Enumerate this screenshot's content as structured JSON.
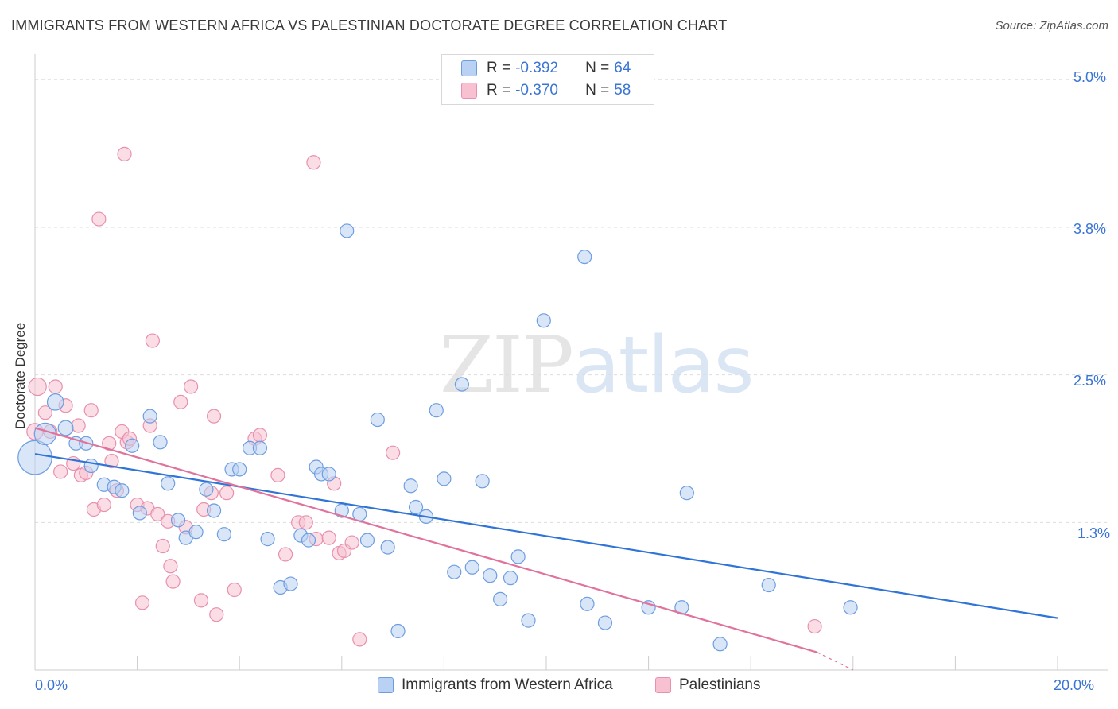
{
  "header": {
    "title": "IMMIGRANTS FROM WESTERN AFRICA VS PALESTINIAN DOCTORATE DEGREE CORRELATION CHART",
    "source": "Source: ZipAtlas.com"
  },
  "watermark": {
    "zip": "ZIP",
    "atlas": "atlas"
  },
  "legend": {
    "rows": [
      {
        "r_label": "R = ",
        "r_value": "-0.392",
        "n_label": "N = ",
        "n_value": "64"
      },
      {
        "r_label": "R = ",
        "r_value": "-0.370",
        "n_label": "N = ",
        "n_value": "58"
      }
    ]
  },
  "bottom_legend": {
    "items": [
      {
        "label": "Immigrants from Western Africa"
      },
      {
        "label": "Palestinians"
      }
    ]
  },
  "axes": {
    "x_tick_labels": [
      "0.0%",
      "20.0%"
    ],
    "y_tick_labels": [
      "5.0%",
      "3.8%",
      "2.5%",
      "1.3%"
    ]
  },
  "colors": {
    "blue_fill": "#b9d1f2",
    "blue_stroke": "#6d9de0",
    "blue_line": "#2f74d6",
    "pink_fill": "#f7c1d1",
    "pink_stroke": "#e890ad",
    "pink_line": "#e0729c",
    "grid": "#dddddd",
    "tick_text": "#3a74d4"
  },
  "chart_data": {
    "type": "scatter",
    "title": "IMMIGRANTS FROM WESTERN AFRICA VS PALESTINIAN DOCTORATE DEGREE CORRELATION CHART",
    "xlabel": "",
    "ylabel": "Doctorate Degree",
    "xlim": [
      0,
      20
    ],
    "ylim": [
      0,
      5.15
    ],
    "y_gridlines": [
      1.25,
      2.5,
      3.75,
      5.0
    ],
    "series": [
      {
        "name": "Immigrants from Western Africa",
        "r": -0.392,
        "n": 64,
        "trend": {
          "x": [
            0,
            20
          ],
          "y": [
            1.83,
            0.44
          ]
        },
        "points": [
          {
            "x": 0.0,
            "y": 1.8,
            "s": 2.5
          },
          {
            "x": 0.2,
            "y": 2.0,
            "s": 1.6
          },
          {
            "x": 0.4,
            "y": 2.27,
            "s": 1.2
          },
          {
            "x": 0.6,
            "y": 2.05,
            "s": 1.1
          },
          {
            "x": 0.8,
            "y": 1.92,
            "s": 1.0
          },
          {
            "x": 1.0,
            "y": 1.92,
            "s": 1.0
          },
          {
            "x": 1.1,
            "y": 1.73,
            "s": 1.0
          },
          {
            "x": 1.35,
            "y": 1.57,
            "s": 1.0
          },
          {
            "x": 1.55,
            "y": 1.55,
            "s": 1.0
          },
          {
            "x": 1.7,
            "y": 1.52,
            "s": 1.0
          },
          {
            "x": 1.9,
            "y": 1.9,
            "s": 1.0
          },
          {
            "x": 2.05,
            "y": 1.33,
            "s": 1.0
          },
          {
            "x": 2.25,
            "y": 2.15,
            "s": 1.0
          },
          {
            "x": 2.45,
            "y": 1.93,
            "s": 1.0
          },
          {
            "x": 2.6,
            "y": 1.58,
            "s": 1.0
          },
          {
            "x": 2.8,
            "y": 1.27,
            "s": 1.0
          },
          {
            "x": 2.95,
            "y": 1.12,
            "s": 1.0
          },
          {
            "x": 3.15,
            "y": 1.17,
            "s": 1.0
          },
          {
            "x": 3.35,
            "y": 1.53,
            "s": 1.0
          },
          {
            "x": 3.5,
            "y": 1.35,
            "s": 1.0
          },
          {
            "x": 3.7,
            "y": 1.15,
            "s": 1.0
          },
          {
            "x": 3.85,
            "y": 1.7,
            "s": 1.0
          },
          {
            "x": 4.0,
            "y": 1.7,
            "s": 1.0
          },
          {
            "x": 4.2,
            "y": 1.88,
            "s": 1.0
          },
          {
            "x": 4.4,
            "y": 1.88,
            "s": 1.0
          },
          {
            "x": 4.55,
            "y": 1.11,
            "s": 1.0
          },
          {
            "x": 4.8,
            "y": 0.7,
            "s": 1.0
          },
          {
            "x": 5.0,
            "y": 0.73,
            "s": 1.0
          },
          {
            "x": 5.2,
            "y": 1.14,
            "s": 1.0
          },
          {
            "x": 5.35,
            "y": 1.1,
            "s": 1.0
          },
          {
            "x": 5.5,
            "y": 1.72,
            "s": 1.0
          },
          {
            "x": 5.6,
            "y": 1.66,
            "s": 1.0
          },
          {
            "x": 5.75,
            "y": 1.66,
            "s": 1.0
          },
          {
            "x": 6.0,
            "y": 1.35,
            "s": 1.0
          },
          {
            "x": 6.1,
            "y": 3.72,
            "s": 1.0
          },
          {
            "x": 6.35,
            "y": 1.32,
            "s": 1.0
          },
          {
            "x": 6.5,
            "y": 1.1,
            "s": 1.0
          },
          {
            "x": 6.7,
            "y": 2.12,
            "s": 1.0
          },
          {
            "x": 6.9,
            "y": 1.04,
            "s": 1.0
          },
          {
            "x": 7.1,
            "y": 0.33,
            "s": 1.0
          },
          {
            "x": 7.35,
            "y": 1.56,
            "s": 1.0
          },
          {
            "x": 7.45,
            "y": 1.38,
            "s": 1.0
          },
          {
            "x": 7.65,
            "y": 1.3,
            "s": 1.0
          },
          {
            "x": 7.85,
            "y": 2.2,
            "s": 1.0
          },
          {
            "x": 8.0,
            "y": 1.62,
            "s": 1.0
          },
          {
            "x": 8.2,
            "y": 0.83,
            "s": 1.0
          },
          {
            "x": 8.35,
            "y": 2.42,
            "s": 1.0
          },
          {
            "x": 8.55,
            "y": 0.87,
            "s": 1.0
          },
          {
            "x": 8.75,
            "y": 1.6,
            "s": 1.0
          },
          {
            "x": 8.9,
            "y": 0.8,
            "s": 1.0
          },
          {
            "x": 9.1,
            "y": 0.6,
            "s": 1.0
          },
          {
            "x": 9.3,
            "y": 0.78,
            "s": 1.0
          },
          {
            "x": 9.45,
            "y": 0.96,
            "s": 1.0
          },
          {
            "x": 9.65,
            "y": 0.42,
            "s": 1.0
          },
          {
            "x": 9.95,
            "y": 2.96,
            "s": 1.0
          },
          {
            "x": 10.75,
            "y": 3.5,
            "s": 1.0
          },
          {
            "x": 10.8,
            "y": 0.56,
            "s": 1.0
          },
          {
            "x": 11.15,
            "y": 0.4,
            "s": 1.0
          },
          {
            "x": 12.0,
            "y": 0.53,
            "s": 1.0
          },
          {
            "x": 12.65,
            "y": 0.53,
            "s": 1.0
          },
          {
            "x": 12.75,
            "y": 1.5,
            "s": 1.0
          },
          {
            "x": 13.4,
            "y": 0.22,
            "s": 1.0
          },
          {
            "x": 14.35,
            "y": 0.72,
            "s": 1.0
          },
          {
            "x": 15.95,
            "y": 0.53,
            "s": 1.0
          }
        ]
      },
      {
        "name": "Palestinians",
        "r": -0.37,
        "n": 58,
        "trend": {
          "x": [
            0,
            15.3
          ],
          "y": [
            2.05,
            0.15
          ]
        },
        "trend_dashed": {
          "x": [
            15.3,
            16.0
          ],
          "y": [
            0.15,
            0.0
          ]
        },
        "points": [
          {
            "x": 0.05,
            "y": 2.4,
            "s": 1.3
          },
          {
            "x": 0.0,
            "y": 2.02,
            "s": 1.2
          },
          {
            "x": 0.2,
            "y": 2.18,
            "s": 1.0
          },
          {
            "x": 0.3,
            "y": 2.02,
            "s": 1.0
          },
          {
            "x": 0.4,
            "y": 2.4,
            "s": 1.0
          },
          {
            "x": 0.5,
            "y": 1.68,
            "s": 1.0
          },
          {
            "x": 0.6,
            "y": 2.24,
            "s": 1.0
          },
          {
            "x": 0.75,
            "y": 1.75,
            "s": 1.0
          },
          {
            "x": 0.85,
            "y": 2.07,
            "s": 1.0
          },
          {
            "x": 0.9,
            "y": 1.65,
            "s": 1.0
          },
          {
            "x": 1.0,
            "y": 1.67,
            "s": 1.0
          },
          {
            "x": 1.1,
            "y": 2.2,
            "s": 1.0
          },
          {
            "x": 1.15,
            "y": 1.36,
            "s": 1.0
          },
          {
            "x": 1.25,
            "y": 3.82,
            "s": 1.0
          },
          {
            "x": 1.35,
            "y": 1.4,
            "s": 1.0
          },
          {
            "x": 1.45,
            "y": 1.92,
            "s": 1.0
          },
          {
            "x": 1.5,
            "y": 1.77,
            "s": 1.0
          },
          {
            "x": 1.6,
            "y": 1.52,
            "s": 1.0
          },
          {
            "x": 1.7,
            "y": 2.02,
            "s": 1.0
          },
          {
            "x": 1.75,
            "y": 4.37,
            "s": 1.0
          },
          {
            "x": 1.8,
            "y": 1.93,
            "s": 1.0
          },
          {
            "x": 1.85,
            "y": 1.96,
            "s": 1.0
          },
          {
            "x": 2.0,
            "y": 1.4,
            "s": 1.0
          },
          {
            "x": 2.1,
            "y": 0.57,
            "s": 1.0
          },
          {
            "x": 2.2,
            "y": 1.37,
            "s": 1.0
          },
          {
            "x": 2.25,
            "y": 2.07,
            "s": 1.0
          },
          {
            "x": 2.3,
            "y": 2.79,
            "s": 1.0
          },
          {
            "x": 2.4,
            "y": 1.32,
            "s": 1.0
          },
          {
            "x": 2.5,
            "y": 1.05,
            "s": 1.0
          },
          {
            "x": 2.6,
            "y": 1.26,
            "s": 1.0
          },
          {
            "x": 2.65,
            "y": 0.88,
            "s": 1.0
          },
          {
            "x": 2.7,
            "y": 0.75,
            "s": 1.0
          },
          {
            "x": 2.85,
            "y": 2.27,
            "s": 1.0
          },
          {
            "x": 2.95,
            "y": 1.21,
            "s": 1.0
          },
          {
            "x": 3.05,
            "y": 2.4,
            "s": 1.0
          },
          {
            "x": 3.25,
            "y": 0.59,
            "s": 1.0
          },
          {
            "x": 3.3,
            "y": 1.36,
            "s": 1.0
          },
          {
            "x": 3.45,
            "y": 1.5,
            "s": 1.0
          },
          {
            "x": 3.5,
            "y": 2.15,
            "s": 1.0
          },
          {
            "x": 3.55,
            "y": 0.47,
            "s": 1.0
          },
          {
            "x": 3.75,
            "y": 1.5,
            "s": 1.0
          },
          {
            "x": 3.9,
            "y": 0.68,
            "s": 1.0
          },
          {
            "x": 4.3,
            "y": 1.96,
            "s": 1.0
          },
          {
            "x": 4.4,
            "y": 1.99,
            "s": 1.0
          },
          {
            "x": 4.75,
            "y": 1.65,
            "s": 1.0
          },
          {
            "x": 4.9,
            "y": 0.98,
            "s": 1.0
          },
          {
            "x": 5.15,
            "y": 1.25,
            "s": 1.0
          },
          {
            "x": 5.3,
            "y": 1.25,
            "s": 1.0
          },
          {
            "x": 5.45,
            "y": 4.3,
            "s": 1.0
          },
          {
            "x": 5.5,
            "y": 1.11,
            "s": 1.0
          },
          {
            "x": 5.75,
            "y": 1.12,
            "s": 1.0
          },
          {
            "x": 5.85,
            "y": 1.58,
            "s": 1.0
          },
          {
            "x": 5.95,
            "y": 0.99,
            "s": 1.0
          },
          {
            "x": 6.05,
            "y": 1.01,
            "s": 1.0
          },
          {
            "x": 6.2,
            "y": 1.08,
            "s": 1.0
          },
          {
            "x": 6.35,
            "y": 0.26,
            "s": 1.0
          },
          {
            "x": 7.0,
            "y": 1.84,
            "s": 1.0
          },
          {
            "x": 15.25,
            "y": 0.37,
            "s": 1.0
          }
        ]
      }
    ]
  }
}
